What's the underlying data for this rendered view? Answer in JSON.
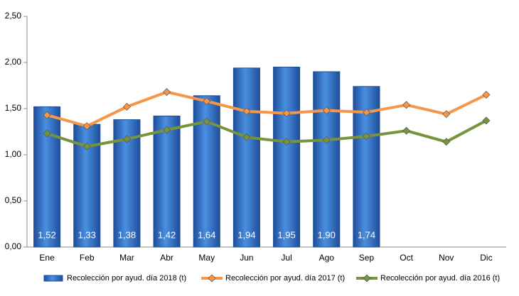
{
  "chart_data": {
    "type": "bar",
    "categories": [
      "Ene",
      "Feb",
      "Mar",
      "Abr",
      "May",
      "Jun",
      "Jul",
      "Ago",
      "Sep",
      "Oct",
      "Nov",
      "Dic"
    ],
    "series": [
      {
        "name": "Recolección por ayud. día 2018 (t)",
        "type": "bar",
        "color": "#3a78c9",
        "values": [
          1.52,
          1.33,
          1.38,
          1.42,
          1.64,
          1.94,
          1.95,
          1.9,
          1.74,
          null,
          null,
          null
        ],
        "value_labels": [
          "1,52",
          "1,33",
          "1,38",
          "1,42",
          "1,64",
          "1,94",
          "1,95",
          "1,90",
          "1,74",
          null,
          null,
          null
        ]
      },
      {
        "name": "Recolección por ayud. día 2017 (t)",
        "type": "line",
        "color": "#f79646",
        "values": [
          1.43,
          1.31,
          1.52,
          1.68,
          1.58,
          1.47,
          1.45,
          1.48,
          1.46,
          1.54,
          1.44,
          1.65
        ]
      },
      {
        "name": "Recolección por ayud. día 2016 (t)",
        "type": "line",
        "color": "#77933c",
        "values": [
          1.23,
          1.09,
          1.17,
          1.27,
          1.36,
          1.19,
          1.14,
          1.16,
          1.2,
          1.26,
          1.14,
          1.37
        ]
      }
    ],
    "ylim": [
      0,
      2.5
    ],
    "yticks": [
      {
        "value": 0,
        "label": "0,00"
      },
      {
        "value": 0.5,
        "label": "0,50"
      },
      {
        "value": 1,
        "label": "1,00"
      },
      {
        "value": 1.5,
        "label": "1,50"
      },
      {
        "value": 2,
        "label": "2,00"
      },
      {
        "value": 2.5,
        "label": "2,50"
      }
    ],
    "legend": "bottom"
  }
}
